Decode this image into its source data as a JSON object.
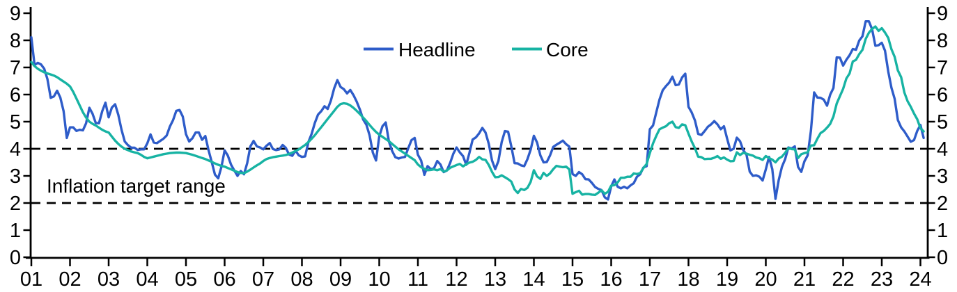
{
  "chart_data": {
    "type": "line",
    "title": "",
    "x_unit": "monthly",
    "x_start": "2001-01",
    "x_end": "2024-02",
    "x_tick_labels": [
      "01",
      "02",
      "03",
      "04",
      "05",
      "06",
      "07",
      "08",
      "09",
      "10",
      "11",
      "12",
      "13",
      "14",
      "15",
      "16",
      "17",
      "18",
      "19",
      "20",
      "21",
      "22",
      "23",
      "24"
    ],
    "ylim": [
      0,
      9
    ],
    "y_tick_values": [
      0,
      1,
      2,
      3,
      4,
      5,
      6,
      7,
      8,
      9
    ],
    "grid": "off",
    "axis_color": "#000000",
    "target_range": {
      "low": 2,
      "high": 4,
      "label": "Inflation target range",
      "line_style": "dashed",
      "line_color": "#000000"
    },
    "legend": {
      "position": "top-center",
      "items": [
        {
          "label": "Headline",
          "color": "#2e5cc9"
        },
        {
          "label": "Core",
          "color": "#17b3a3"
        }
      ]
    },
    "series": [
      {
        "name": "Headline",
        "color": "#2e5cc9",
        "values": [
          8.11,
          7.09,
          7.17,
          7.11,
          6.95,
          6.57,
          5.88,
          5.93,
          6.14,
          5.89,
          5.39,
          4.4,
          4.79,
          4.79,
          4.66,
          4.7,
          4.68,
          4.94,
          5.51,
          5.29,
          4.95,
          4.94,
          5.39,
          5.7,
          5.16,
          5.52,
          5.64,
          5.25,
          4.7,
          4.27,
          4.13,
          4.04,
          4.04,
          3.96,
          3.98,
          3.98,
          4.2,
          4.53,
          4.23,
          4.21,
          4.29,
          4.37,
          4.49,
          4.82,
          5.06,
          5.4,
          5.43,
          5.19,
          4.54,
          4.27,
          4.39,
          4.6,
          4.6,
          4.33,
          4.47,
          3.95,
          3.51,
          3.05,
          2.91,
          3.33,
          3.94,
          3.75,
          3.41,
          3.2,
          3.0,
          3.18,
          3.06,
          3.47,
          4.09,
          4.29,
          4.09,
          4.05,
          3.98,
          4.11,
          4.21,
          3.99,
          3.95,
          3.98,
          4.14,
          4.03,
          3.79,
          3.74,
          3.93,
          3.76,
          3.7,
          3.72,
          4.25,
          4.55,
          4.95,
          5.26,
          5.39,
          5.57,
          5.47,
          5.78,
          6.23,
          6.53,
          6.28,
          6.2,
          6.04,
          6.17,
          5.98,
          5.74,
          5.44,
          5.08,
          4.89,
          4.5,
          3.86,
          3.57,
          4.46,
          4.83,
          4.97,
          4.27,
          3.92,
          3.69,
          3.64,
          3.68,
          3.7,
          4.02,
          4.32,
          4.4,
          3.78,
          3.57,
          3.04,
          3.36,
          3.25,
          3.28,
          3.55,
          3.42,
          3.14,
          3.2,
          3.48,
          3.82,
          4.05,
          3.87,
          3.73,
          3.41,
          3.85,
          4.34,
          4.42,
          4.57,
          4.77,
          4.6,
          4.18,
          3.57,
          3.25,
          3.55,
          4.25,
          4.65,
          4.63,
          4.09,
          3.47,
          3.46,
          3.39,
          3.36,
          3.62,
          3.97,
          4.48,
          4.23,
          3.76,
          3.5,
          3.51,
          3.75,
          4.07,
          4.15,
          4.22,
          4.3,
          4.17,
          4.08,
          3.07,
          3.0,
          3.14,
          3.06,
          2.88,
          2.87,
          2.74,
          2.59,
          2.52,
          2.48,
          2.21,
          2.13,
          2.61,
          2.87,
          2.6,
          2.54,
          2.6,
          2.54,
          2.65,
          2.73,
          2.97,
          3.06,
          3.31,
          3.36,
          4.72,
          4.86,
          5.35,
          5.82,
          6.16,
          6.31,
          6.44,
          6.66,
          6.35,
          6.37,
          6.63,
          6.77,
          5.55,
          5.34,
          5.04,
          4.55,
          4.51,
          4.65,
          4.81,
          4.9,
          5.02,
          4.9,
          4.72,
          4.83,
          4.37,
          3.94,
          4.0,
          4.41,
          4.28,
          3.95,
          3.78,
          3.16,
          3.0,
          3.02,
          2.97,
          2.83,
          3.24,
          3.7,
          3.25,
          2.15,
          2.84,
          3.33,
          3.62,
          4.05,
          4.01,
          4.09,
          3.33,
          3.15,
          3.54,
          3.76,
          4.67,
          6.08,
          5.89,
          5.88,
          5.81,
          5.59,
          6.0,
          6.24,
          7.37,
          7.36,
          7.07,
          7.28,
          7.45,
          7.68,
          7.65,
          7.99,
          8.15,
          8.7,
          8.7,
          8.41,
          7.8,
          7.82,
          7.91,
          7.62,
          6.85,
          6.25,
          5.84,
          5.06,
          4.79,
          4.64,
          4.45,
          4.26,
          4.32,
          4.66,
          4.88,
          4.4
        ]
      },
      {
        "name": "Core",
        "color": "#17b3a3",
        "values": [
          7.2,
          7.05,
          6.95,
          6.88,
          6.82,
          6.78,
          6.74,
          6.7,
          6.64,
          6.56,
          6.48,
          6.4,
          6.3,
          6.1,
          5.85,
          5.6,
          5.35,
          5.15,
          5.0,
          4.92,
          4.86,
          4.78,
          4.7,
          4.64,
          4.6,
          4.45,
          4.3,
          4.18,
          4.08,
          4.0,
          3.95,
          3.9,
          3.87,
          3.84,
          3.78,
          3.7,
          3.65,
          3.68,
          3.71,
          3.74,
          3.77,
          3.8,
          3.82,
          3.84,
          3.85,
          3.86,
          3.86,
          3.85,
          3.84,
          3.81,
          3.78,
          3.74,
          3.7,
          3.66,
          3.62,
          3.57,
          3.52,
          3.46,
          3.41,
          3.37,
          3.34,
          3.29,
          3.24,
          3.19,
          3.14,
          3.11,
          3.1,
          3.16,
          3.23,
          3.31,
          3.39,
          3.46,
          3.55,
          3.62,
          3.66,
          3.69,
          3.71,
          3.73,
          3.75,
          3.77,
          3.81,
          3.86,
          3.92,
          3.98,
          4.06,
          4.14,
          4.25,
          4.37,
          4.5,
          4.65,
          4.8,
          4.95,
          5.1,
          5.25,
          5.4,
          5.55,
          5.65,
          5.68,
          5.66,
          5.6,
          5.51,
          5.4,
          5.28,
          5.15,
          5.02,
          4.88,
          4.74,
          4.62,
          4.52,
          4.44,
          4.36,
          4.28,
          4.18,
          4.08,
          3.98,
          3.9,
          3.82,
          3.74,
          3.66,
          3.58,
          3.42,
          3.32,
          3.26,
          3.21,
          3.22,
          3.24,
          3.21,
          3.25,
          3.16,
          3.2,
          3.3,
          3.35,
          3.4,
          3.44,
          3.35,
          3.43,
          3.49,
          3.52,
          3.59,
          3.7,
          3.61,
          3.59,
          3.4,
          3.15,
          2.95,
          2.96,
          3.02,
          2.95,
          2.88,
          2.79,
          2.5,
          2.37,
          2.52,
          2.48,
          2.56,
          2.78,
          3.21,
          2.98,
          2.89,
          3.11,
          3.0,
          3.09,
          3.25,
          3.37,
          3.34,
          3.32,
          3.34,
          3.24,
          2.34,
          2.4,
          2.45,
          2.31,
          2.33,
          2.33,
          2.31,
          2.3,
          2.38,
          2.47,
          2.34,
          2.41,
          2.64,
          2.66,
          2.76,
          2.93,
          2.93,
          2.97,
          2.97,
          3.09,
          3.07,
          3.1,
          3.29,
          3.44,
          3.84,
          4.2,
          4.48,
          4.72,
          4.78,
          4.83,
          4.94,
          5.0,
          4.8,
          4.77,
          4.9,
          4.87,
          4.56,
          4.27,
          4.02,
          3.71,
          3.69,
          3.62,
          3.63,
          3.63,
          3.67,
          3.73,
          3.63,
          3.68,
          3.6,
          3.54,
          3.55,
          3.87,
          3.77,
          3.85,
          3.82,
          3.78,
          3.75,
          3.68,
          3.65,
          3.59,
          3.73,
          3.66,
          3.6,
          3.5,
          3.64,
          3.71,
          3.85,
          4.03,
          3.99,
          3.98,
          3.66,
          3.8,
          3.84,
          3.87,
          4.12,
          4.13,
          4.37,
          4.58,
          4.66,
          4.78,
          4.92,
          5.19,
          5.67,
          5.94,
          6.21,
          6.59,
          6.78,
          7.22,
          7.28,
          7.49,
          7.65,
          8.05,
          8.28,
          8.42,
          8.51,
          8.35,
          8.45,
          8.29,
          8.09,
          7.67,
          7.39,
          6.89,
          6.64,
          6.08,
          5.76,
          5.55,
          5.3,
          5.09,
          4.76,
          4.64
        ]
      }
    ]
  }
}
